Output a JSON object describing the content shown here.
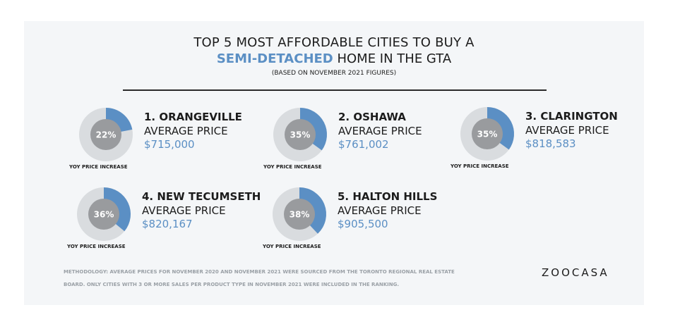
{
  "header": {
    "title_line1": "TOP 5 MOST AFFORDABLE CITIES TO BUY A",
    "title_line2_highlight": "SEMI-DETACHED",
    "title_line2_rest": " HOME IN THE GTA",
    "subtitle": "(BASED ON NOVEMBER 2021 FIGURES)"
  },
  "chart_data": {
    "type": "pie",
    "unit_label": "YOY PRICE INCREASE",
    "price_label": "AVERAGE PRICE",
    "items": [
      {
        "rank_name": "1. ORANGEVILLE",
        "yoy_increase_pct": 22,
        "yoy_label": "22%",
        "average_price": "$715,000"
      },
      {
        "rank_name": "2. OSHAWA",
        "yoy_increase_pct": 35,
        "yoy_label": "35%",
        "average_price": "$761,002"
      },
      {
        "rank_name": "3. CLARINGTON",
        "yoy_increase_pct": 35,
        "yoy_label": "35%",
        "average_price": "$818,583"
      },
      {
        "rank_name": "4. NEW TECUMSETH",
        "yoy_increase_pct": 36,
        "yoy_label": "36%",
        "average_price": "$820,167"
      },
      {
        "rank_name": "5. HALTON HILLS",
        "yoy_increase_pct": 38,
        "yoy_label": "38%",
        "average_price": "$905,500"
      }
    ]
  },
  "colors": {
    "accent": "#5b8fc4",
    "ring_bg": "#d9dcdf",
    "inner": "#999b9e"
  },
  "footer": {
    "methodology": "METHODOLOGY: AVERAGE PRICES FOR NOVEMBER 2020 AND NOVEMBER 2021 WERE SOURCED FROM THE TORONTO REGIONAL REAL ESTATE BOARD. ONLY CITIES WITH 3 OR MORE SALES PER PRODUCT TYPE IN NOVEMBER 2021 WERE INCLUDED IN THE RANKING.",
    "logo": "ZOOCASA"
  }
}
